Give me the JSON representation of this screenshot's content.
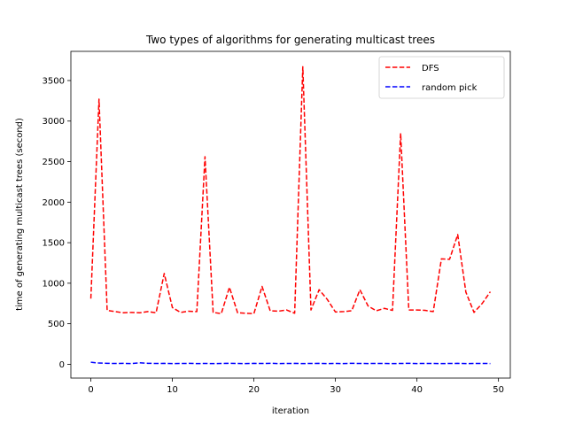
{
  "chart_data": {
    "type": "line",
    "title": "Two types of algorithms for generating multicast trees",
    "xlabel": "iteration",
    "ylabel": "time of generating multicast trees (second)",
    "xlim": [
      -2.45,
      51.45
    ],
    "ylim": [
      -170,
      3860
    ],
    "xticks": [
      0,
      10,
      20,
      30,
      40,
      50
    ],
    "yticks": [
      0,
      500,
      1000,
      1500,
      2000,
      2500,
      3000,
      3500
    ],
    "grid": false,
    "legend_position": "top-right",
    "x": [
      0,
      1,
      2,
      3,
      4,
      5,
      6,
      7,
      8,
      9,
      10,
      11,
      12,
      13,
      14,
      15,
      16,
      17,
      18,
      19,
      20,
      21,
      22,
      23,
      24,
      25,
      26,
      27,
      28,
      29,
      30,
      31,
      32,
      33,
      34,
      35,
      36,
      37,
      38,
      39,
      40,
      41,
      42,
      43,
      44,
      45,
      46,
      47,
      48,
      49
    ],
    "series": [
      {
        "name": "DFS",
        "color": "#ff0000",
        "style": "dashed",
        "values": [
          810,
          3270,
          665,
          650,
          635,
          640,
          635,
          650,
          635,
          1120,
          700,
          640,
          655,
          650,
          2560,
          640,
          625,
          950,
          635,
          630,
          625,
          960,
          660,
          655,
          670,
          630,
          3670,
          670,
          920,
          800,
          645,
          650,
          660,
          920,
          720,
          660,
          690,
          665,
          2850,
          670,
          670,
          665,
          650,
          1300,
          1295,
          1600,
          890,
          640,
          750,
          895
        ]
      },
      {
        "name": "random pick",
        "color": "#0000ff",
        "style": "dashed",
        "values": [
          25,
          15,
          12,
          10,
          11,
          9,
          18,
          12,
          10,
          11,
          9,
          10,
          11,
          9,
          10,
          9,
          10,
          12,
          10,
          9,
          11,
          10,
          12,
          9,
          10,
          11,
          9,
          10,
          11,
          9,
          10,
          9,
          12,
          10,
          9,
          11,
          10,
          9,
          10,
          12,
          9,
          11,
          10,
          9,
          10,
          11,
          9,
          10,
          11,
          9
        ]
      }
    ]
  }
}
